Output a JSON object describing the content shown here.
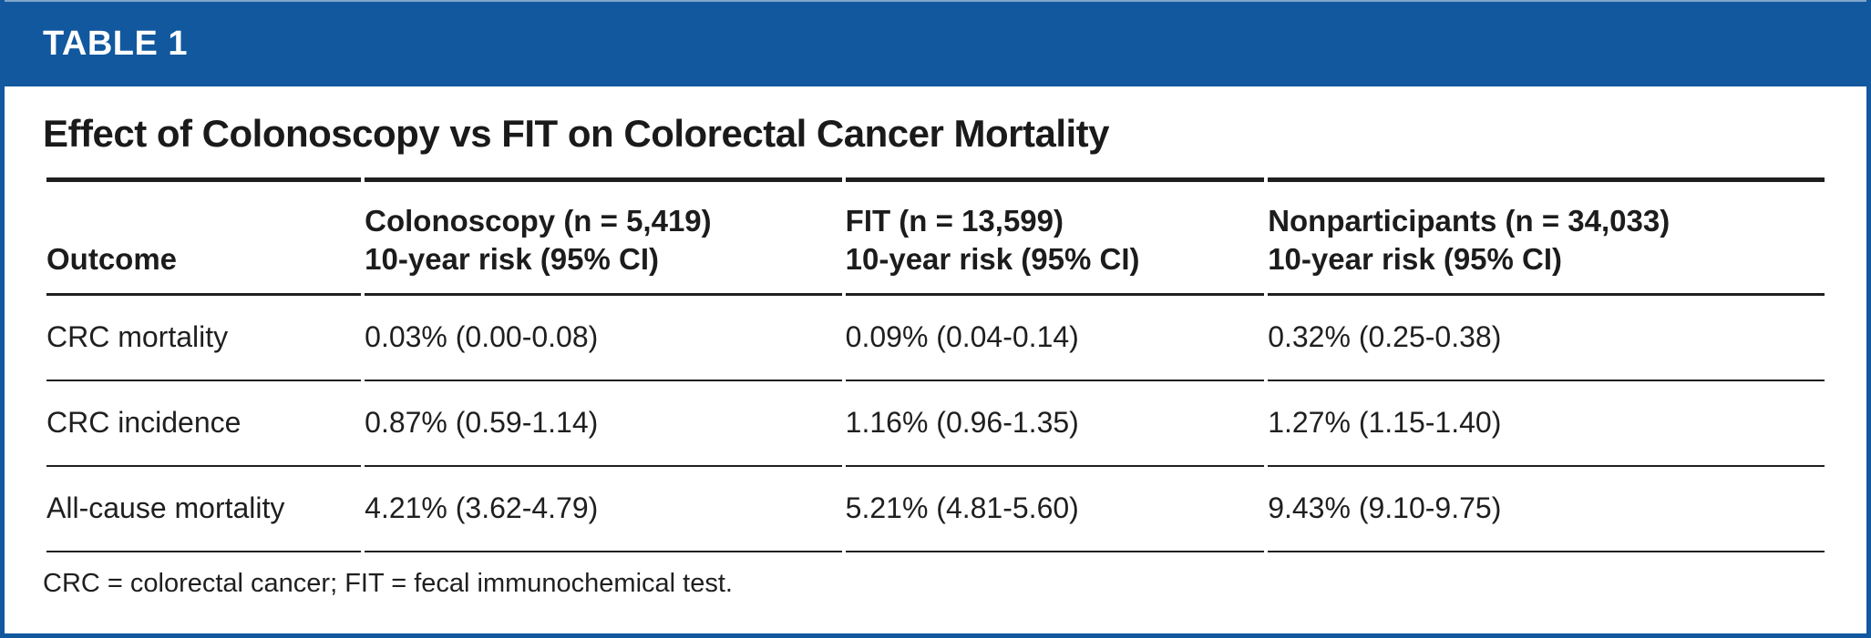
{
  "banner": {
    "label": "TABLE 1"
  },
  "title": "Effect of Colonoscopy vs FIT on Colorectal Cancer Mortality",
  "colors": {
    "banner_blue": "#11589E",
    "border_blue": "#11589E",
    "rule_black": "#1f1f1f",
    "text": "#1c1c1c",
    "background": "#ffffff",
    "banner_text": "#ffffff"
  },
  "table": {
    "columns": [
      {
        "label": "Outcome",
        "sub": ""
      },
      {
        "label": "Colonoscopy (n = 5,419)",
        "sub": "10-year risk (95% CI)"
      },
      {
        "label": "FIT (n = 13,599)",
        "sub": "10-year risk (95% CI)"
      },
      {
        "label": "Nonparticipants (n = 34,033)",
        "sub": "10-year risk (95% CI)"
      }
    ],
    "rows": [
      {
        "outcome": "CRC mortality",
        "colonoscopy": "0.03% (0.00-0.08)",
        "fit": "0.09% (0.04-0.14)",
        "nonparticipants": "0.32% (0.25-0.38)"
      },
      {
        "outcome": "CRC incidence",
        "colonoscopy": "0.87% (0.59-1.14)",
        "fit": "1.16% (0.96-1.35)",
        "nonparticipants": "1.27% (1.15-1.40)"
      },
      {
        "outcome": "All-cause mortality",
        "colonoscopy": "4.21% (3.62-4.79)",
        "fit": "5.21% (4.81-5.60)",
        "nonparticipants": "9.43% (9.10-9.75)"
      }
    ]
  },
  "footnote": "CRC = colorectal cancer; FIT = fecal immunochemical test.",
  "chart_data": {
    "type": "table",
    "title": "Effect of Colonoscopy vs FIT on Colorectal Cancer Mortality",
    "columns": [
      "Outcome",
      "Colonoscopy (n = 5,419) 10-year risk (95% CI)",
      "FIT (n = 13,599) 10-year risk (95% CI)",
      "Nonparticipants (n = 34,033) 10-year risk (95% CI)"
    ],
    "rows": [
      [
        "CRC mortality",
        "0.03% (0.00-0.08)",
        "0.09% (0.04-0.14)",
        "0.32% (0.25-0.38)"
      ],
      [
        "CRC incidence",
        "0.87% (0.59-1.14)",
        "1.16% (0.96-1.35)",
        "1.27% (1.15-1.40)"
      ],
      [
        "All-cause mortality",
        "4.21% (3.62-4.79)",
        "5.21% (4.81-5.60)",
        "9.43% (9.10-9.75)"
      ]
    ]
  }
}
